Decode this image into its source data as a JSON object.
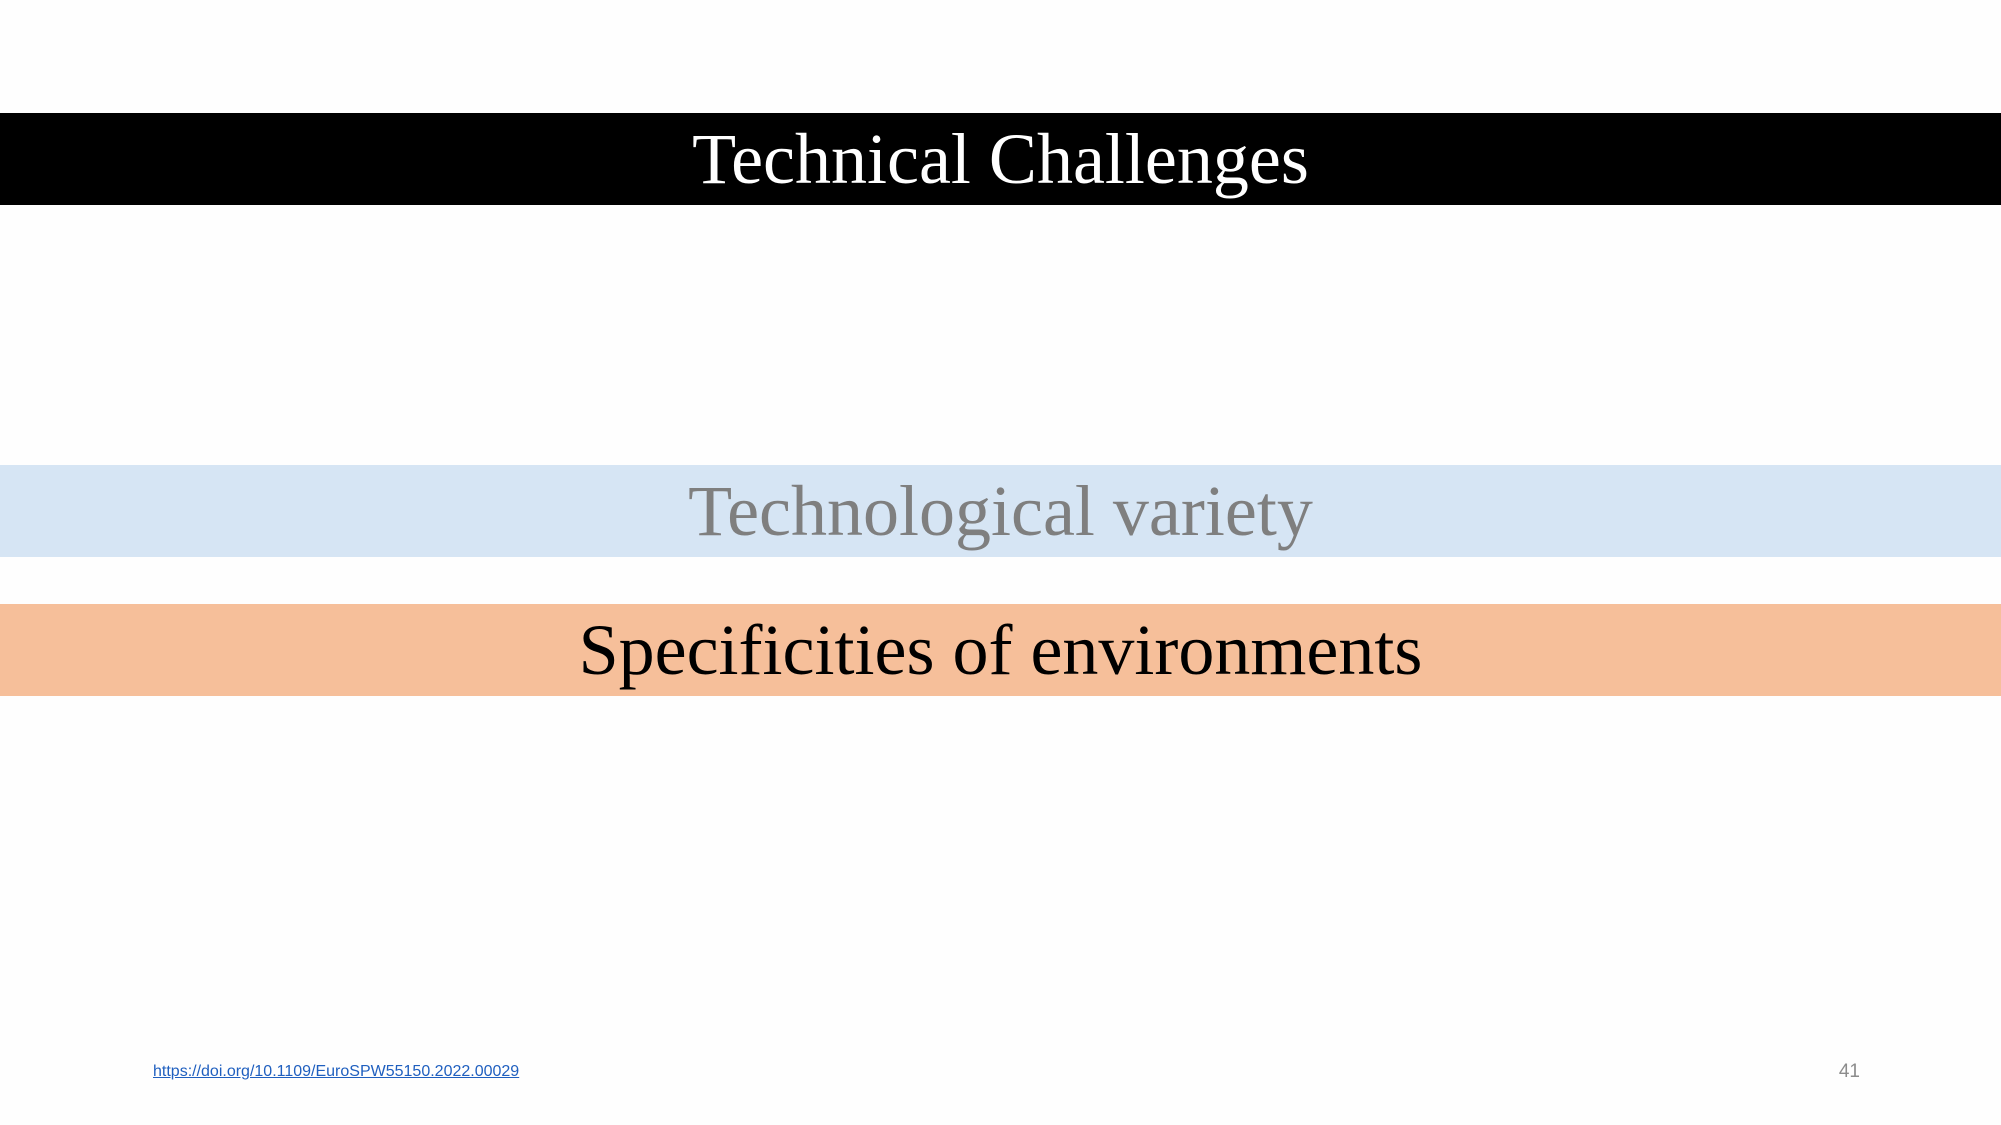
{
  "slide": {
    "title": "Technical Challenges",
    "items": [
      {
        "label": "Technological variety",
        "status": "dimmed"
      },
      {
        "label": "Specificities of environments",
        "status": "highlighted"
      }
    ],
    "footer": {
      "link": "https://doi.org/10.1109/EuroSPW55150.2022.00029",
      "page_number": "41"
    }
  },
  "colors": {
    "title_band": "#000000",
    "title_text": "#ffffff",
    "item_dimmed_band": "#d6e5f4",
    "item_dimmed_text": "#7f7f7f",
    "item_highlighted_band": "#f6bf9a",
    "item_highlighted_text": "#000000",
    "link": "#1f5fbf"
  }
}
